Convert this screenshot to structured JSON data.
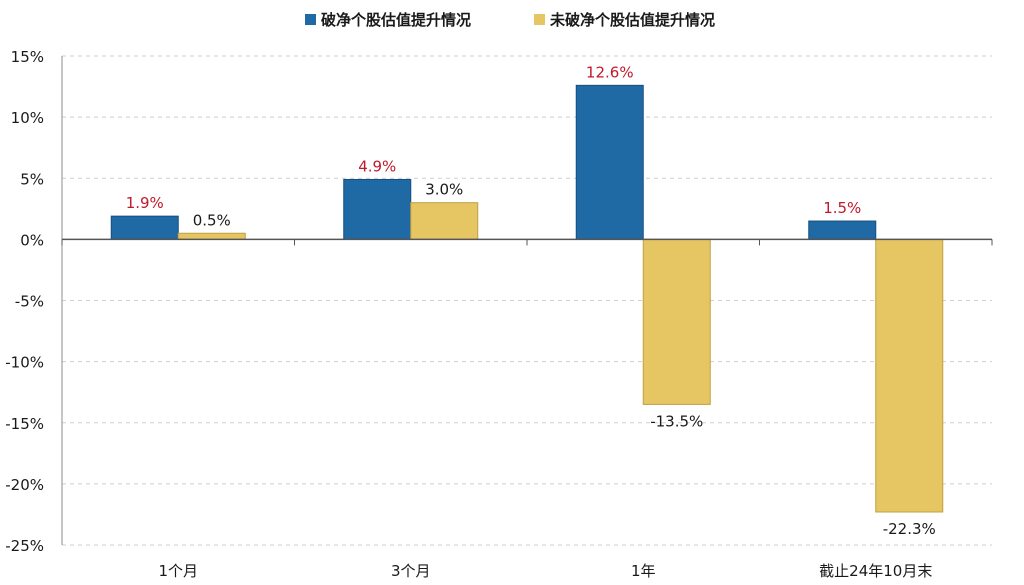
{
  "chart_data": {
    "type": "bar",
    "categories": [
      "1个月",
      "3个月",
      "1年",
      "截止24年10月末"
    ],
    "series": [
      {
        "name": "破净个股估值提升情况",
        "values": [
          1.9,
          4.9,
          12.6,
          1.5
        ],
        "color": "#1f6aa5",
        "label_color": "#c0192b"
      },
      {
        "name": "未破净个股估值提升情况",
        "values": [
          0.5,
          3.0,
          -13.5,
          -22.3
        ],
        "color": "#e6c663",
        "label_color": "#1a1a1a"
      }
    ],
    "ylim": [
      -25,
      15
    ],
    "yticks": [
      15,
      10,
      5,
      0,
      -5,
      -10,
      -15,
      -20,
      -25
    ],
    "ytick_labels": [
      "15%",
      "10%",
      "5%",
      "0%",
      "-5%",
      "-10%",
      "-15%",
      "-20%",
      "-25%"
    ],
    "data_labels": [
      [
        "1.9%",
        "4.9%",
        "12.6%",
        "1.5%"
      ],
      [
        "0.5%",
        "3.0%",
        "-13.5%",
        "-22.3%"
      ]
    ],
    "grid": true,
    "legend_position": "top-center",
    "title": "",
    "xlabel": "",
    "ylabel": ""
  }
}
